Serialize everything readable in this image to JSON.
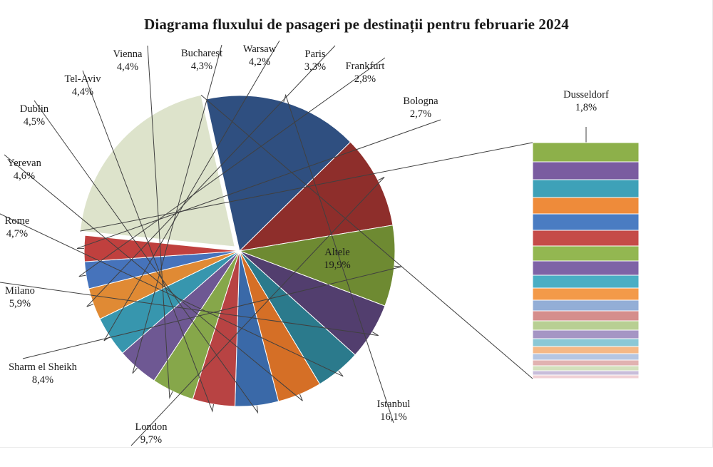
{
  "chart_data": {
    "type": "pie",
    "title": "Diagrama fluxului de pasageri pe destinații pentru februarie 2024",
    "slices": [
      {
        "label": "Altele",
        "value": 19.9,
        "display": "19,9%",
        "color": "#DDE3CB"
      },
      {
        "label": "Istanbul",
        "value": 16.1,
        "display": "16,1%",
        "color": "#2F4F80"
      },
      {
        "label": "London",
        "value": 9.7,
        "display": "9,7%",
        "color": "#8E2E2B"
      },
      {
        "label": "Sharm el Sheikh",
        "value": 8.4,
        "display": "8,4%",
        "color": "#6E8A32"
      },
      {
        "label": "Milano",
        "value": 5.9,
        "display": "5,9%",
        "color": "#523E6E"
      },
      {
        "label": "Rome",
        "value": 4.7,
        "display": "4,7%",
        "color": "#2B7A8C"
      },
      {
        "label": "Yerevan",
        "value": 4.6,
        "display": "4,6%",
        "color": "#D56F26"
      },
      {
        "label": "Dublin",
        "value": 4.5,
        "display": "4,5%",
        "color": "#3A69A8"
      },
      {
        "label": "Tel-Aviv",
        "value": 4.4,
        "display": "4,4%",
        "color": "#B84343"
      },
      {
        "label": "Vienna",
        "value": 4.4,
        "display": "4,4%",
        "color": "#86A74A"
      },
      {
        "label": "Bucharest",
        "value": 4.3,
        "display": "4,3%",
        "color": "#6E5893"
      },
      {
        "label": "Warsaw",
        "value": 4.2,
        "display": "4,2%",
        "color": "#3796AE"
      },
      {
        "label": "Paris",
        "value": 3.3,
        "display": "3,3%",
        "color": "#E08A34"
      },
      {
        "label": "Frankfurt",
        "value": 2.8,
        "display": "2,8%",
        "color": "#4673BB"
      },
      {
        "label": "Bologna",
        "value": 2.7,
        "display": "2,7%",
        "color": "#C0403E"
      }
    ],
    "exploded_slice": "Altele",
    "breakdown": {
      "first_label": "Dusseldorf",
      "first_display": "1,8%",
      "colors": [
        "#8DB04A",
        "#7A5CA0",
        "#3EA1B8",
        "#EE8B3A",
        "#4A7CC2",
        "#C54B48",
        "#93B751",
        "#7E63A6",
        "#4AAEC4",
        "#F39A49",
        "#93AED6",
        "#D58E8C",
        "#B8CF93",
        "#A595C4",
        "#8BC8D6",
        "#F5B886",
        "#B5C6E2",
        "#E1B2B1",
        "#D3E0BC",
        "#C8BDDA",
        "#F0D0D5"
      ]
    }
  }
}
